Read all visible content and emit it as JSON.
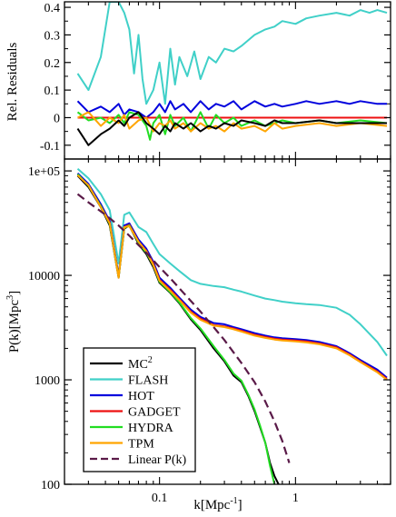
{
  "chart_data": [
    {
      "type": "line",
      "panel": "top",
      "ylabel": "Rel. Residuals",
      "xscale": "log",
      "xlim": [
        0.02,
        5.0
      ],
      "ylim": [
        -0.15,
        0.42
      ],
      "yticks": [
        -0.1,
        0,
        0.1,
        0.2,
        0.3,
        0.4
      ],
      "yticklabels": [
        "-0.1",
        "0",
        "0.1",
        "0.2",
        "0.3",
        "0.4"
      ],
      "grid": false,
      "series": [
        {
          "name": "FLASH",
          "color": "#40d0c8",
          "x": [
            0.025,
            0.03,
            0.037,
            0.043,
            0.05,
            0.055,
            0.06,
            0.065,
            0.07,
            0.075,
            0.08,
            0.09,
            0.1,
            0.11,
            0.12,
            0.13,
            0.14,
            0.16,
            0.18,
            0.2,
            0.23,
            0.26,
            0.3,
            0.35,
            0.4,
            0.5,
            0.6,
            0.7,
            0.8,
            1.0,
            1.2,
            1.5,
            2.0,
            2.5,
            3.0,
            3.5,
            4.0,
            4.7
          ],
          "y": [
            0.16,
            0.1,
            0.22,
            0.42,
            0.42,
            0.38,
            0.32,
            0.16,
            0.3,
            0.14,
            0.05,
            0.1,
            0.2,
            0.05,
            0.25,
            0.12,
            0.22,
            0.15,
            0.24,
            0.14,
            0.22,
            0.2,
            0.25,
            0.24,
            0.26,
            0.3,
            0.32,
            0.33,
            0.35,
            0.34,
            0.36,
            0.37,
            0.38,
            0.37,
            0.39,
            0.38,
            0.39,
            0.38
          ]
        },
        {
          "name": "HOT",
          "color": "#0000dd",
          "x": [
            0.025,
            0.03,
            0.037,
            0.043,
            0.05,
            0.055,
            0.06,
            0.07,
            0.08,
            0.09,
            0.1,
            0.11,
            0.12,
            0.13,
            0.15,
            0.17,
            0.2,
            0.23,
            0.26,
            0.3,
            0.35,
            0.4,
            0.5,
            0.6,
            0.7,
            0.8,
            1.0,
            1.2,
            1.5,
            2.0,
            2.5,
            3.0,
            4.0,
            4.7
          ],
          "y": [
            0.06,
            0.02,
            0.04,
            0.02,
            0.05,
            0.01,
            0.03,
            0.02,
            0.0,
            0.02,
            0.05,
            0.02,
            0.06,
            0.03,
            0.05,
            0.02,
            0.06,
            0.03,
            0.05,
            0.04,
            0.06,
            0.03,
            0.06,
            0.04,
            0.05,
            0.04,
            0.05,
            0.06,
            0.05,
            0.06,
            0.05,
            0.06,
            0.05,
            0.05
          ]
        },
        {
          "name": "GADGET",
          "color": "#ee1111",
          "x": [
            0.025,
            0.05,
            0.1,
            0.2,
            0.5,
            1.0,
            2.0,
            4.7
          ],
          "y": [
            0,
            0,
            0,
            0,
            0,
            0,
            0,
            0
          ]
        },
        {
          "name": "HYDRA",
          "color": "#22dd22",
          "x": [
            0.025,
            0.03,
            0.037,
            0.043,
            0.05,
            0.055,
            0.06,
            0.07,
            0.08,
            0.085,
            0.09,
            0.1,
            0.11,
            0.12,
            0.13,
            0.15,
            0.17,
            0.2,
            0.23,
            0.26,
            0.3,
            0.35,
            0.4,
            0.5,
            0.6,
            0.7,
            0.8,
            1.0,
            1.5,
            2.0,
            3.0,
            4.7
          ],
          "y": [
            0.02,
            -0.01,
            0.0,
            -0.02,
            0.01,
            -0.02,
            0.02,
            0.01,
            -0.03,
            -0.08,
            -0.02,
            0.01,
            -0.06,
            0.01,
            -0.03,
            0.0,
            -0.05,
            0.02,
            -0.04,
            0.01,
            -0.02,
            0.0,
            -0.03,
            -0.01,
            -0.03,
            -0.02,
            -0.01,
            -0.02,
            -0.01,
            -0.02,
            -0.01,
            -0.02
          ]
        },
        {
          "name": "TPM",
          "color": "#ffa500",
          "x": [
            0.025,
            0.03,
            0.037,
            0.043,
            0.05,
            0.055,
            0.06,
            0.07,
            0.08,
            0.09,
            0.1,
            0.11,
            0.12,
            0.13,
            0.15,
            0.17,
            0.2,
            0.23,
            0.26,
            0.3,
            0.35,
            0.4,
            0.5,
            0.6,
            0.7,
            0.8,
            1.0,
            1.5,
            2.0,
            3.0,
            4.7
          ],
          "y": [
            0.0,
            0.02,
            -0.03,
            0.0,
            -0.02,
            0.01,
            -0.04,
            -0.01,
            0.0,
            -0.05,
            -0.02,
            -0.03,
            -0.01,
            -0.04,
            -0.02,
            -0.05,
            -0.02,
            -0.04,
            -0.03,
            -0.05,
            -0.02,
            -0.04,
            -0.03,
            -0.05,
            -0.02,
            -0.04,
            -0.03,
            -0.02,
            -0.03,
            -0.02,
            -0.03
          ]
        },
        {
          "name": "MC2",
          "color": "#000000",
          "x": [
            0.025,
            0.03,
            0.037,
            0.043,
            0.05,
            0.055,
            0.06,
            0.07,
            0.08,
            0.09,
            0.1,
            0.11,
            0.12,
            0.13,
            0.15,
            0.17,
            0.2,
            0.23,
            0.26,
            0.3,
            0.35,
            0.4,
            0.5,
            0.6,
            0.7,
            0.8,
            1.0,
            1.5,
            2.0,
            3.0,
            4.7
          ],
          "y": [
            -0.04,
            -0.1,
            -0.06,
            -0.04,
            -0.01,
            -0.03,
            0.0,
            0.02,
            -0.02,
            -0.04,
            -0.06,
            -0.03,
            -0.05,
            -0.02,
            -0.04,
            -0.02,
            -0.05,
            -0.03,
            -0.04,
            -0.02,
            -0.03,
            -0.01,
            -0.02,
            -0.03,
            -0.01,
            -0.02,
            -0.02,
            -0.01,
            -0.02,
            -0.02,
            -0.02
          ]
        }
      ]
    },
    {
      "type": "line",
      "panel": "bottom",
      "xlabel_main": "k[Mpc",
      "xlabel_sup": "-1",
      "xlabel_end": "]",
      "ylabel_main": "P(k)[Mpc",
      "ylabel_sup": "3",
      "ylabel_end": "]",
      "xscale": "log",
      "yscale": "log",
      "xlim": [
        0.02,
        5.0
      ],
      "ylim": [
        100,
        130000
      ],
      "xticks": [
        0.1,
        1
      ],
      "xticklabels": [
        "0.1",
        "1"
      ],
      "yticks": [
        100,
        1000,
        10000,
        100000
      ],
      "yticklabels": [
        "100",
        "1000",
        "10000",
        "1e+05"
      ],
      "grid": false,
      "legend": {
        "placement": "bottom-left"
      },
      "series": [
        {
          "name": "MC",
          "sup": "2",
          "color": "#000000",
          "dash": false,
          "x": [
            0.025,
            0.03,
            0.037,
            0.043,
            0.05,
            0.055,
            0.06,
            0.07,
            0.08,
            0.09,
            0.1,
            0.12,
            0.14,
            0.17,
            0.2,
            0.25,
            0.3,
            0.35,
            0.4,
            0.45,
            0.5,
            0.55,
            0.6,
            0.65,
            0.7,
            0.75
          ],
          "y": [
            90000,
            70000,
            45000,
            30000,
            9500,
            28000,
            30000,
            20000,
            16000,
            12000,
            8500,
            6800,
            5400,
            3800,
            3000,
            2000,
            1500,
            1100,
            950,
            700,
            500,
            350,
            250,
            160,
            120,
            100
          ]
        },
        {
          "name": "FLASH",
          "sup": "",
          "color": "#40d0c8",
          "dash": false,
          "x": [
            0.025,
            0.03,
            0.037,
            0.043,
            0.05,
            0.055,
            0.06,
            0.07,
            0.08,
            0.09,
            0.1,
            0.12,
            0.14,
            0.17,
            0.2,
            0.25,
            0.3,
            0.35,
            0.4,
            0.5,
            0.6,
            0.7,
            0.8,
            1.0,
            1.2,
            1.5,
            2.0,
            2.5,
            3.0,
            4.0,
            4.7
          ],
          "y": [
            105000,
            85000,
            60000,
            42000,
            13000,
            38000,
            40000,
            29000,
            26000,
            20000,
            16000,
            13000,
            11000,
            9000,
            8300,
            7900,
            7700,
            7300,
            7000,
            6400,
            6000,
            5800,
            5600,
            5400,
            5300,
            5200,
            4900,
            4200,
            3400,
            2300,
            1700
          ]
        },
        {
          "name": "HOT",
          "sup": "",
          "color": "#0000dd",
          "dash": false,
          "x": [
            0.025,
            0.03,
            0.037,
            0.043,
            0.05,
            0.055,
            0.06,
            0.07,
            0.08,
            0.09,
            0.1,
            0.12,
            0.14,
            0.17,
            0.2,
            0.25,
            0.3,
            0.35,
            0.4,
            0.5,
            0.6,
            0.7,
            0.8,
            1.0,
            1.2,
            1.5,
            2.0,
            2.5,
            3.0,
            4.0,
            4.7
          ],
          "y": [
            95000,
            75000,
            48000,
            33000,
            10000,
            30000,
            31500,
            22000,
            18000,
            13500,
            9500,
            7600,
            6100,
            4700,
            4000,
            3500,
            3400,
            3200,
            3050,
            2800,
            2650,
            2550,
            2500,
            2450,
            2400,
            2300,
            2100,
            1800,
            1550,
            1250,
            1050
          ]
        },
        {
          "name": "GADGET",
          "sup": "",
          "color": "#ee1111",
          "dash": false,
          "x": [
            0.025,
            0.03,
            0.037,
            0.043,
            0.05,
            0.055,
            0.06,
            0.07,
            0.08,
            0.09,
            0.1,
            0.12,
            0.14,
            0.17,
            0.2,
            0.25,
            0.3,
            0.35,
            0.4,
            0.5,
            0.6,
            0.7,
            0.8,
            1.0,
            1.2,
            1.5,
            2.0,
            2.5,
            3.0,
            4.0,
            4.7
          ],
          "y": [
            92000,
            72000,
            46000,
            32000,
            9700,
            29000,
            30500,
            21000,
            17200,
            12900,
            9100,
            7300,
            5900,
            4500,
            3850,
            3350,
            3250,
            3100,
            2950,
            2700,
            2570,
            2480,
            2430,
            2380,
            2330,
            2230,
            2050,
            1750,
            1500,
            1200,
            1020
          ]
        },
        {
          "name": "HYDRA",
          "sup": "",
          "color": "#22dd22",
          "dash": false,
          "x": [
            0.025,
            0.03,
            0.037,
            0.043,
            0.05,
            0.055,
            0.06,
            0.07,
            0.08,
            0.09,
            0.1,
            0.12,
            0.14,
            0.17,
            0.2,
            0.25,
            0.3,
            0.35,
            0.4,
            0.45,
            0.5,
            0.55,
            0.6,
            0.65,
            0.7
          ],
          "y": [
            93000,
            72000,
            46000,
            31000,
            9600,
            28500,
            30000,
            20500,
            16500,
            12500,
            8700,
            6900,
            5500,
            3900,
            3100,
            2100,
            1550,
            1150,
            980,
            720,
            520,
            360,
            250,
            150,
            100
          ]
        },
        {
          "name": "TPM",
          "sup": "",
          "color": "#ffa500",
          "dash": false,
          "x": [
            0.025,
            0.03,
            0.037,
            0.043,
            0.05,
            0.055,
            0.06,
            0.07,
            0.08,
            0.09,
            0.1,
            0.12,
            0.14,
            0.17,
            0.2,
            0.25,
            0.3,
            0.35,
            0.4,
            0.5,
            0.6,
            0.7,
            0.8,
            1.0,
            1.2,
            1.5,
            2.0,
            2.5,
            3.0,
            4.0,
            4.7
          ],
          "y": [
            91000,
            73000,
            45000,
            31500,
            9500,
            29000,
            29500,
            21000,
            17000,
            12500,
            8900,
            7100,
            5800,
            4400,
            3750,
            3300,
            3200,
            3050,
            2900,
            2650,
            2520,
            2430,
            2380,
            2330,
            2280,
            2190,
            2000,
            1720,
            1480,
            1180,
            1000
          ]
        },
        {
          "name": "Linear P(k)",
          "sup": "",
          "color": "#5a1a48",
          "dash": true,
          "x": [
            0.025,
            0.03,
            0.04,
            0.05,
            0.06,
            0.07,
            0.08,
            0.1,
            0.12,
            0.15,
            0.2,
            0.25,
            0.3,
            0.4,
            0.5,
            0.6,
            0.7,
            0.8,
            0.9
          ],
          "y": [
            60000,
            50000,
            38000,
            30000,
            24000,
            19500,
            16500,
            12000,
            9400,
            6800,
            4500,
            3200,
            2400,
            1450,
            950,
            620,
            400,
            260,
            160
          ]
        }
      ]
    }
  ]
}
